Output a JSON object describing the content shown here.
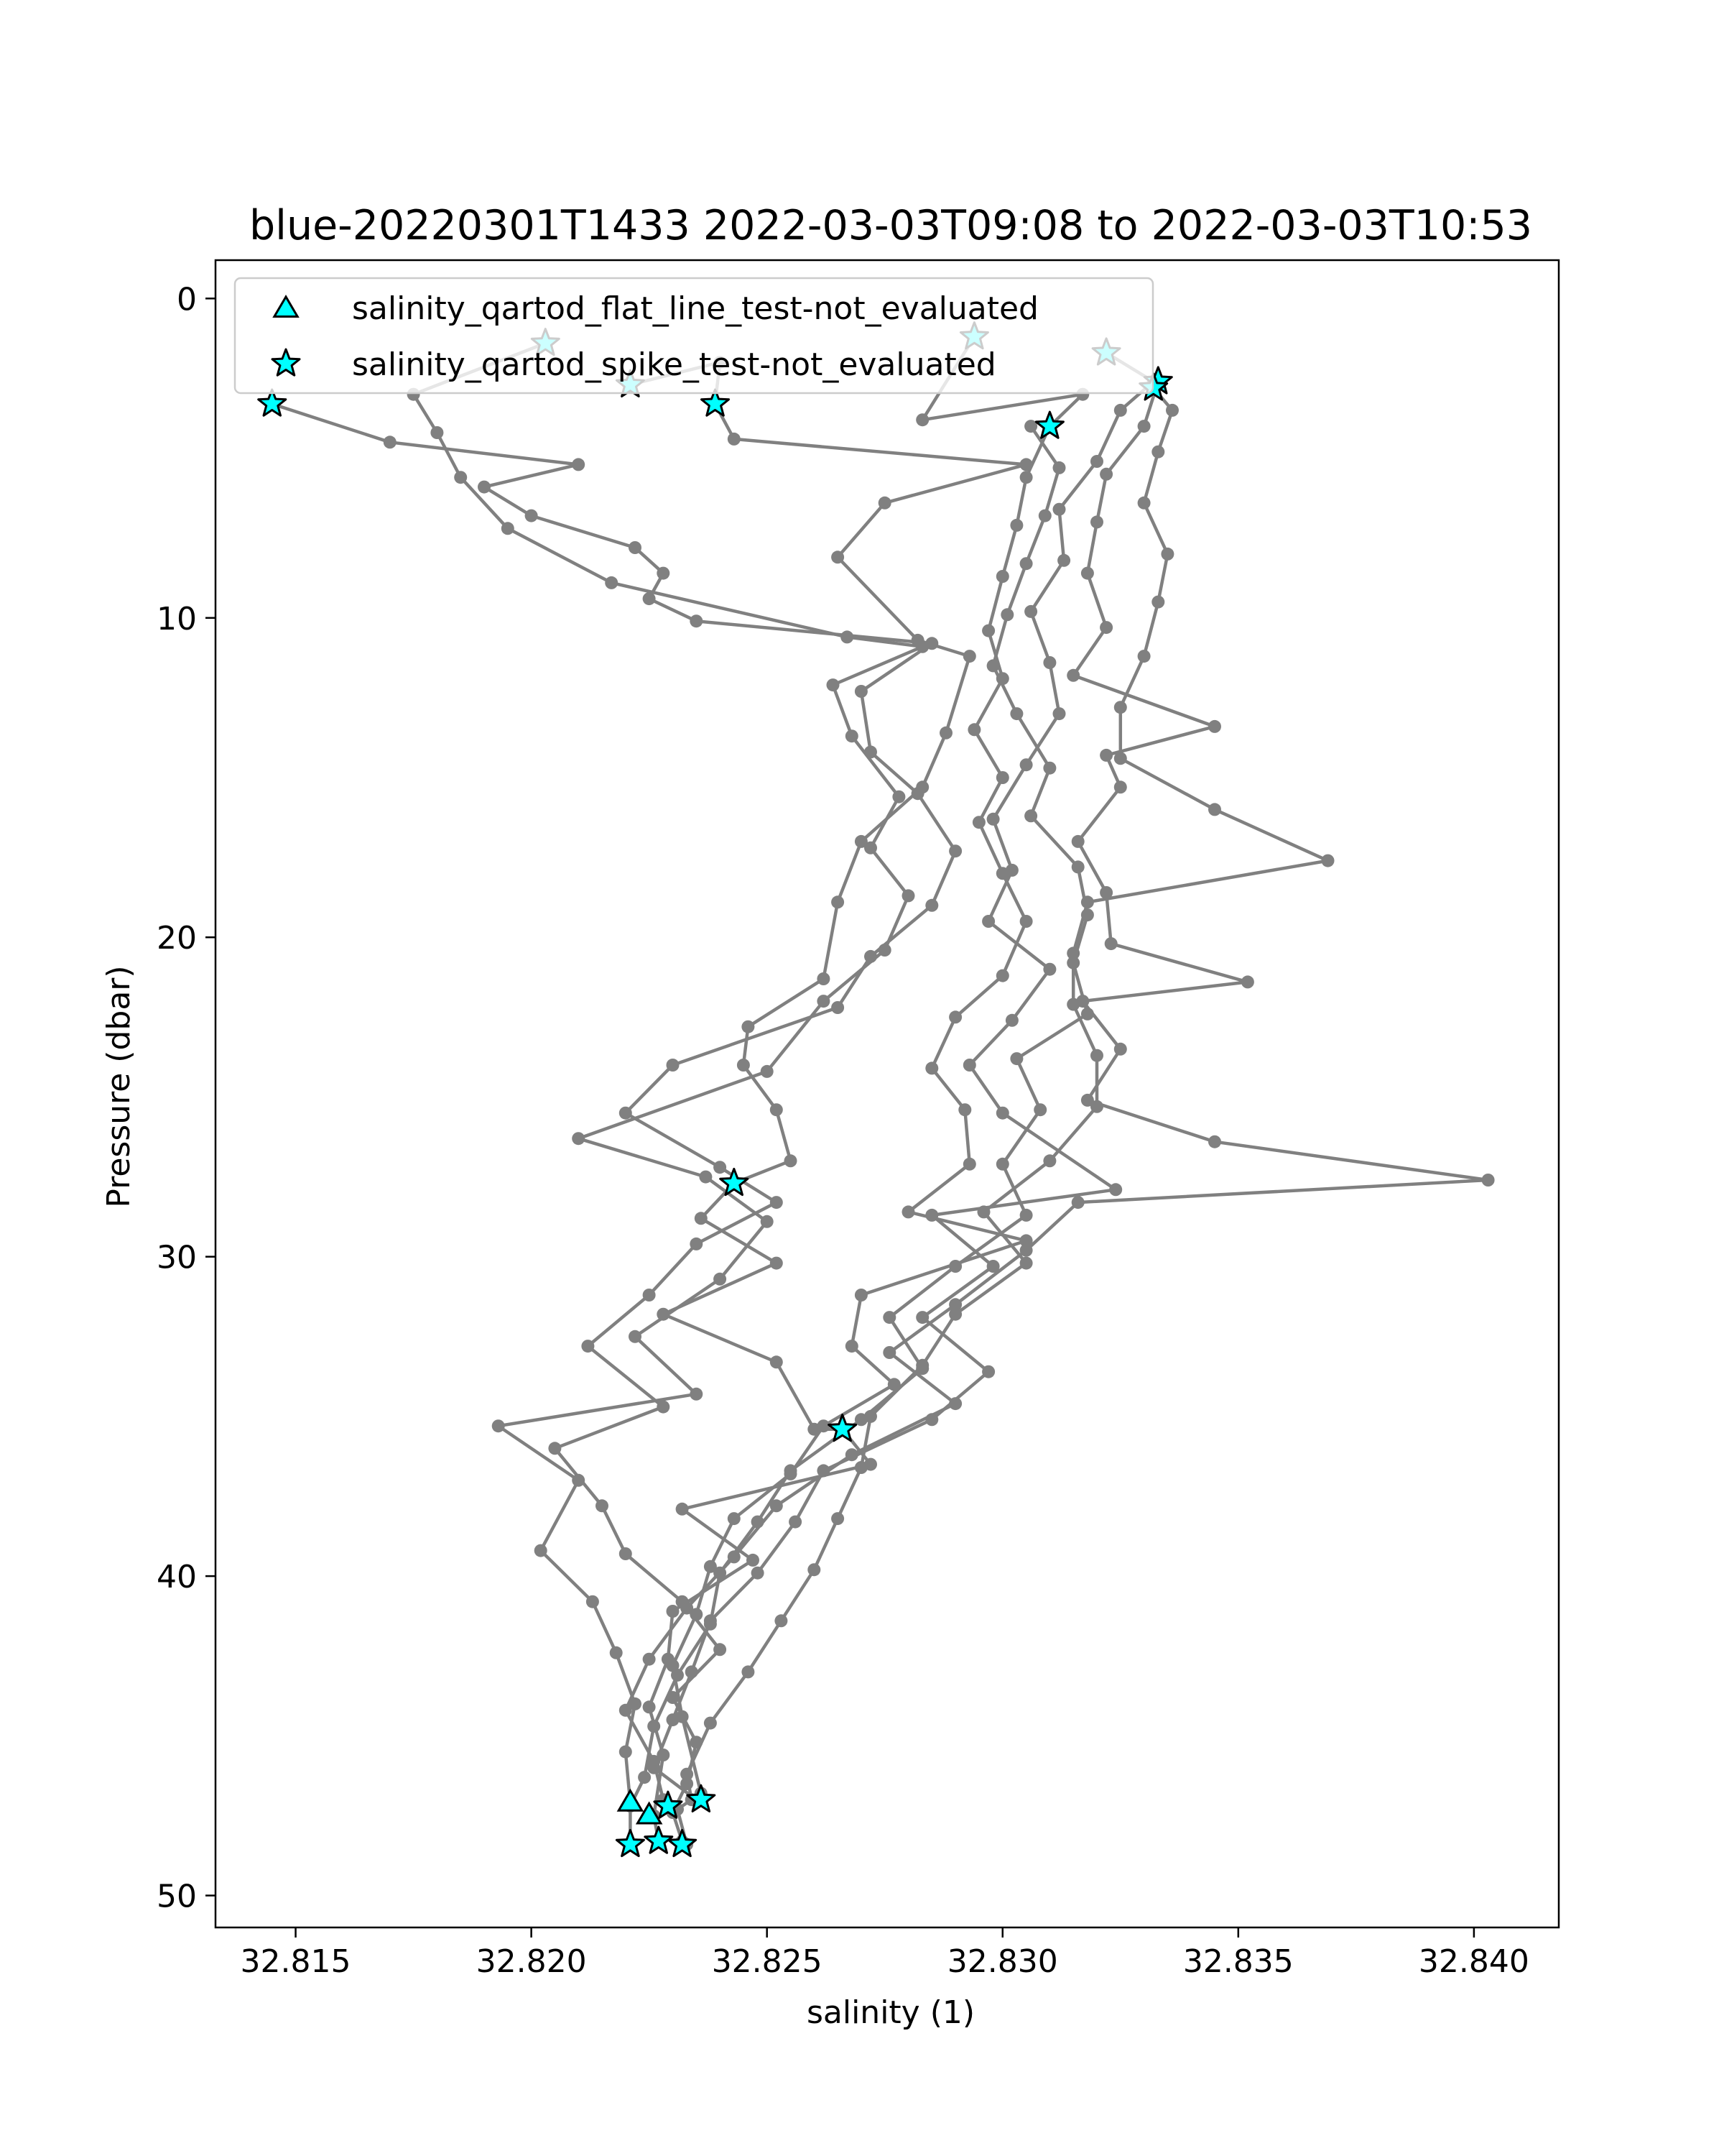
{
  "chart_data": {
    "type": "line",
    "title": "blue-20220301T1433 2022-03-03T09:08 to 2022-03-03T10:53",
    "xlabel": "salinity (1)",
    "ylabel": "Pressure (dbar)",
    "xlim": [
      32.8133,
      32.8418
    ],
    "ylim": [
      51,
      -1.2
    ],
    "y_inverted": true,
    "grid": false,
    "xticks": [
      32.815,
      32.82,
      32.825,
      32.83,
      32.835,
      32.84
    ],
    "xtick_labels": [
      "32.815",
      "32.820",
      "32.825",
      "32.830",
      "32.835",
      "32.840"
    ],
    "yticks": [
      0,
      10,
      20,
      30,
      40,
      50
    ],
    "ytick_labels": [
      "0",
      "10",
      "20",
      "30",
      "40",
      "50"
    ],
    "line_color": "#808080",
    "marker_color": "#00ffff",
    "legend_position": "upper-left",
    "legend": [
      {
        "label": "salinity_qartod_flat_line_test-not_evaluated",
        "marker": "triangle"
      },
      {
        "label": "salinity_qartod_spike_test-not_evaluated",
        "marker": "star"
      }
    ],
    "series": [
      {
        "points": [
          [
            32.8145,
            3.3
          ],
          [
            32.817,
            4.5
          ],
          [
            32.821,
            5.2
          ],
          [
            32.819,
            5.9
          ],
          [
            32.82,
            6.8
          ],
          [
            32.8222,
            7.8
          ],
          [
            32.8228,
            8.6
          ],
          [
            32.8225,
            9.4
          ],
          [
            32.8235,
            10.1
          ],
          [
            32.8285,
            10.8
          ],
          [
            32.827,
            12.3
          ],
          [
            32.8272,
            14.2
          ],
          [
            32.8282,
            15.5
          ],
          [
            32.829,
            17.3
          ],
          [
            32.8285,
            19.0
          ],
          [
            32.8272,
            20.6
          ],
          [
            32.8265,
            22.2
          ],
          [
            32.823,
            24.0
          ],
          [
            32.822,
            25.5
          ],
          [
            32.824,
            27.2
          ],
          [
            32.8252,
            28.3
          ],
          [
            32.8235,
            29.6
          ],
          [
            32.8225,
            31.2
          ],
          [
            32.8212,
            32.8
          ],
          [
            32.8228,
            34.7
          ],
          [
            32.8205,
            36.0
          ],
          [
            32.8215,
            37.8
          ],
          [
            32.822,
            39.3
          ],
          [
            32.8232,
            40.8
          ],
          [
            32.824,
            42.3
          ],
          [
            32.823,
            43.8
          ],
          [
            32.8235,
            45.2
          ],
          [
            32.8233,
            46.5
          ],
          [
            32.823,
            47.4
          ],
          [
            32.8232,
            48.3
          ]
        ]
      },
      {
        "points": [
          [
            32.8203,
            1.4
          ],
          [
            32.8175,
            3.0
          ],
          [
            32.818,
            4.2
          ],
          [
            32.8185,
            5.6
          ],
          [
            32.8195,
            7.2
          ],
          [
            32.8217,
            8.9
          ],
          [
            32.8267,
            10.6
          ],
          [
            32.8283,
            10.9
          ],
          [
            32.8264,
            12.1
          ],
          [
            32.8268,
            13.7
          ],
          [
            32.8278,
            15.6
          ],
          [
            32.8272,
            17.2
          ],
          [
            32.828,
            18.7
          ],
          [
            32.8275,
            20.4
          ],
          [
            32.8262,
            22.0
          ],
          [
            32.825,
            24.2
          ],
          [
            32.821,
            26.3
          ],
          [
            32.8237,
            27.5
          ],
          [
            32.825,
            28.9
          ],
          [
            32.824,
            30.7
          ],
          [
            32.8222,
            32.5
          ],
          [
            32.8235,
            34.3
          ],
          [
            32.8193,
            35.3
          ],
          [
            32.821,
            37.0
          ],
          [
            32.8202,
            39.2
          ],
          [
            32.8213,
            40.8
          ],
          [
            32.8218,
            42.4
          ],
          [
            32.8222,
            44.0
          ],
          [
            32.822,
            45.5
          ],
          [
            32.8221,
            47.1
          ]
        ]
      },
      {
        "points": [
          [
            32.8221,
            2.7
          ],
          [
            32.824,
            2.0
          ],
          [
            32.8239,
            3.3
          ],
          [
            32.8243,
            4.4
          ],
          [
            32.8305,
            5.2
          ],
          [
            32.8275,
            6.4
          ],
          [
            32.8265,
            8.1
          ],
          [
            32.8282,
            10.7
          ],
          [
            32.8293,
            11.2
          ],
          [
            32.8288,
            13.6
          ],
          [
            32.8283,
            15.3
          ],
          [
            32.827,
            17.0
          ],
          [
            32.8265,
            18.9
          ],
          [
            32.8262,
            21.3
          ],
          [
            32.8246,
            22.8
          ],
          [
            32.8245,
            24.0
          ],
          [
            32.8252,
            25.4
          ],
          [
            32.8255,
            27.0
          ],
          [
            32.8243,
            27.7
          ],
          [
            32.8236,
            28.8
          ],
          [
            32.8252,
            30.2
          ],
          [
            32.8228,
            31.8
          ],
          [
            32.8252,
            33.3
          ],
          [
            32.826,
            35.4
          ],
          [
            32.8266,
            35.4
          ],
          [
            32.8272,
            36.5
          ],
          [
            32.8232,
            37.9
          ],
          [
            32.8247,
            39.5
          ],
          [
            32.823,
            41.1
          ],
          [
            32.8229,
            42.6
          ],
          [
            32.8225,
            44.1
          ],
          [
            32.8228,
            45.6
          ],
          [
            32.8226,
            47.5
          ],
          [
            32.8227,
            48.3
          ]
        ]
      },
      {
        "points": [
          [
            32.8294,
            1.2
          ],
          [
            32.8283,
            3.8
          ],
          [
            32.8317,
            3.0
          ],
          [
            32.831,
            4.0
          ],
          [
            32.8305,
            5.6
          ],
          [
            32.8303,
            7.1
          ],
          [
            32.83,
            8.7
          ],
          [
            32.8297,
            10.4
          ],
          [
            32.83,
            11.9
          ],
          [
            32.8294,
            13.5
          ],
          [
            32.83,
            15.0
          ],
          [
            32.8295,
            16.4
          ],
          [
            32.83,
            18.0
          ],
          [
            32.8305,
            19.5
          ],
          [
            32.83,
            21.2
          ],
          [
            32.829,
            22.5
          ],
          [
            32.8285,
            24.1
          ],
          [
            32.8292,
            25.4
          ],
          [
            32.8293,
            27.1
          ],
          [
            32.828,
            28.6
          ],
          [
            32.8305,
            29.5
          ],
          [
            32.827,
            31.2
          ],
          [
            32.8268,
            32.8
          ],
          [
            32.8277,
            34.0
          ],
          [
            32.8262,
            35.3
          ],
          [
            32.8255,
            36.8
          ],
          [
            32.8243,
            38.2
          ],
          [
            32.8238,
            39.7
          ],
          [
            32.8235,
            41.2
          ],
          [
            32.823,
            42.8
          ],
          [
            32.8232,
            44.4
          ],
          [
            32.8236,
            46.8
          ],
          [
            32.8231,
            47.3
          ],
          [
            32.8233,
            48.4
          ]
        ]
      },
      {
        "points": [
          [
            32.8322,
            1.7
          ],
          [
            32.8332,
            2.6
          ],
          [
            32.8325,
            3.5
          ],
          [
            32.832,
            5.1
          ],
          [
            32.8312,
            6.6
          ],
          [
            32.8313,
            8.2
          ],
          [
            32.8306,
            9.8
          ],
          [
            32.831,
            11.4
          ],
          [
            32.8312,
            13.0
          ],
          [
            32.8305,
            14.6
          ],
          [
            32.8298,
            16.3
          ],
          [
            32.8302,
            17.9
          ],
          [
            32.8297,
            19.5
          ],
          [
            32.831,
            21.0
          ],
          [
            32.8302,
            22.6
          ],
          [
            32.8293,
            24.0
          ],
          [
            32.83,
            25.5
          ],
          [
            32.8324,
            27.9
          ],
          [
            32.8285,
            28.7
          ],
          [
            32.8298,
            30.3
          ],
          [
            32.8283,
            31.9
          ],
          [
            32.8297,
            33.6
          ],
          [
            32.8285,
            35.1
          ],
          [
            32.8262,
            36.7
          ],
          [
            32.8256,
            38.3
          ],
          [
            32.8248,
            39.9
          ],
          [
            32.8238,
            41.4
          ],
          [
            32.8234,
            43.0
          ],
          [
            32.823,
            44.5
          ],
          [
            32.8226,
            46.0
          ],
          [
            32.8235,
            47.0
          ]
        ]
      },
      {
        "points": [
          [
            32.8333,
            2.6
          ],
          [
            32.833,
            4.0
          ],
          [
            32.8322,
            5.5
          ],
          [
            32.832,
            7.0
          ],
          [
            32.8318,
            8.6
          ],
          [
            32.8322,
            10.3
          ],
          [
            32.8315,
            11.8
          ],
          [
            32.8345,
            13.4
          ],
          [
            32.8322,
            14.3
          ],
          [
            32.8325,
            15.3
          ],
          [
            32.8316,
            17.0
          ],
          [
            32.8322,
            18.6
          ],
          [
            32.8323,
            20.2
          ],
          [
            32.8352,
            21.4
          ],
          [
            32.8317,
            22.0
          ],
          [
            32.8325,
            23.5
          ],
          [
            32.8318,
            25.1
          ],
          [
            32.8345,
            26.4
          ],
          [
            32.8403,
            27.6
          ],
          [
            32.8316,
            28.3
          ],
          [
            32.8305,
            29.8
          ],
          [
            32.829,
            31.5
          ],
          [
            32.8276,
            33.0
          ],
          [
            32.829,
            34.6
          ],
          [
            32.8268,
            36.2
          ],
          [
            32.8252,
            37.8
          ],
          [
            32.8243,
            39.4
          ],
          [
            32.8233,
            41.0
          ],
          [
            32.8225,
            42.6
          ],
          [
            32.822,
            44.2
          ],
          [
            32.8226,
            45.8
          ],
          [
            32.8228,
            47.0
          ]
        ]
      },
      {
        "points": [
          [
            32.8332,
            2.8
          ],
          [
            32.8336,
            3.5
          ],
          [
            32.8333,
            4.8
          ],
          [
            32.833,
            6.4
          ],
          [
            32.8335,
            8.0
          ],
          [
            32.8333,
            9.5
          ],
          [
            32.833,
            11.2
          ],
          [
            32.8325,
            12.8
          ],
          [
            32.8325,
            14.4
          ],
          [
            32.8345,
            16.0
          ],
          [
            32.8369,
            17.6
          ],
          [
            32.8318,
            18.9
          ],
          [
            32.8315,
            20.5
          ],
          [
            32.8315,
            22.1
          ],
          [
            32.832,
            23.7
          ],
          [
            32.832,
            25.3
          ],
          [
            32.831,
            27.0
          ],
          [
            32.8296,
            28.6
          ],
          [
            32.8305,
            30.2
          ],
          [
            32.829,
            31.8
          ],
          [
            32.8283,
            33.4
          ],
          [
            32.8272,
            35.0
          ],
          [
            32.827,
            36.6
          ],
          [
            32.8265,
            38.2
          ],
          [
            32.826,
            39.8
          ],
          [
            32.8253,
            41.4
          ],
          [
            32.8246,
            43.0
          ],
          [
            32.8238,
            44.6
          ],
          [
            32.8233,
            46.2
          ],
          [
            32.8234,
            47.0
          ]
        ]
      },
      {
        "points": [
          [
            32.8306,
            4.0
          ],
          [
            32.8312,
            5.3
          ],
          [
            32.8309,
            6.8
          ],
          [
            32.8305,
            8.3
          ],
          [
            32.8301,
            9.9
          ],
          [
            32.8298,
            11.5
          ],
          [
            32.8303,
            13.0
          ],
          [
            32.831,
            14.7
          ],
          [
            32.8306,
            16.2
          ],
          [
            32.8316,
            17.8
          ],
          [
            32.8318,
            19.3
          ],
          [
            32.8315,
            20.8
          ],
          [
            32.8318,
            22.4
          ],
          [
            32.8303,
            23.8
          ],
          [
            32.8308,
            25.4
          ],
          [
            32.83,
            27.1
          ],
          [
            32.8305,
            28.7
          ],
          [
            32.829,
            30.3
          ],
          [
            32.8276,
            31.9
          ],
          [
            32.8283,
            33.5
          ],
          [
            32.827,
            35.1
          ],
          [
            32.8255,
            36.7
          ],
          [
            32.8248,
            38.3
          ],
          [
            32.824,
            39.9
          ],
          [
            32.8238,
            41.5
          ],
          [
            32.8231,
            43.1
          ],
          [
            32.8226,
            44.7
          ],
          [
            32.8224,
            46.3
          ],
          [
            32.8221,
            47.2
          ],
          [
            32.8221,
            48.4
          ]
        ]
      }
    ],
    "flat_line_markers": [
      [
        32.8221,
        47.1
      ],
      [
        32.8225,
        47.5
      ]
    ],
    "spike_markers": [
      [
        32.8145,
        3.3
      ],
      [
        32.8203,
        1.4
      ],
      [
        32.8221,
        2.7
      ],
      [
        32.8239,
        3.3
      ],
      [
        32.8294,
        1.2
      ],
      [
        32.8322,
        1.7
      ],
      [
        32.8333,
        2.6
      ],
      [
        32.8332,
        2.8
      ],
      [
        32.831,
        4.0
      ],
      [
        32.8243,
        27.7
      ],
      [
        32.8266,
        35.4
      ],
      [
        32.8236,
        47.0
      ],
      [
        32.8229,
        47.2
      ],
      [
        32.8221,
        48.4
      ],
      [
        32.8227,
        48.3
      ],
      [
        32.8232,
        48.4
      ]
    ]
  }
}
